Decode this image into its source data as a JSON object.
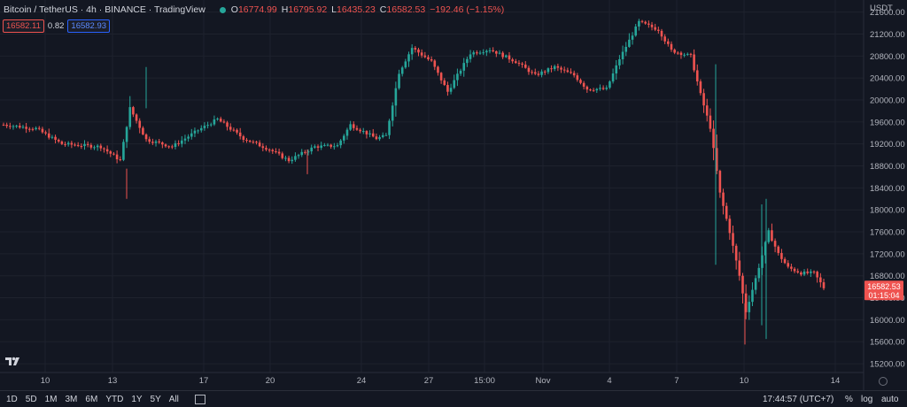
{
  "header": {
    "symbol": "Bitcoin / TetherUS · 4h · BINANCE · TradingView",
    "open_label": "O",
    "open": "16774.99",
    "high_label": "H",
    "high": "16795.92",
    "low_label": "L",
    "low": "16435.23",
    "close_label": "C",
    "close": "16582.53",
    "change": "−192.46 (−1.15%)",
    "bid": "16582.11",
    "spread": "0.82",
    "ask": "16582.93",
    "currency": "USDT"
  },
  "colors": {
    "up": "#26a69a",
    "down": "#ef5350",
    "background": "#131722",
    "grid": "#1e222d",
    "text": "#b2b5be"
  },
  "chart_data": {
    "type": "candlestick",
    "y_ticks": [
      15200,
      15600,
      16000,
      16400,
      16800,
      17200,
      17600,
      18000,
      18400,
      18800,
      19200,
      19600,
      20000,
      20400,
      20800,
      21200,
      21600
    ],
    "ylim": [
      15040,
      21820
    ],
    "x_labels": [
      "10",
      "13",
      "17",
      "20",
      "24",
      "27",
      "15:00",
      "Nov",
      "4",
      "7",
      "10",
      "14"
    ],
    "last_price": "16582.53",
    "countdown": "01:15:04",
    "grid": true,
    "keypoints": [
      {
        "i": 0,
        "price": 19550
      },
      {
        "i": 10,
        "price": 19480
      },
      {
        "i": 18,
        "price": 19200
      },
      {
        "i": 30,
        "price": 19150
      },
      {
        "i": 36,
        "price": 18900
      },
      {
        "i": 39,
        "price": 19850
      },
      {
        "i": 44,
        "price": 19280
      },
      {
        "i": 52,
        "price": 19150
      },
      {
        "i": 60,
        "price": 19450
      },
      {
        "i": 66,
        "price": 19650
      },
      {
        "i": 74,
        "price": 19300
      },
      {
        "i": 82,
        "price": 19100
      },
      {
        "i": 88,
        "price": 18900
      },
      {
        "i": 96,
        "price": 19150
      },
      {
        "i": 103,
        "price": 19170
      },
      {
        "i": 107,
        "price": 19550
      },
      {
        "i": 115,
        "price": 19300
      },
      {
        "i": 118,
        "price": 19350
      },
      {
        "i": 122,
        "price": 20500
      },
      {
        "i": 126,
        "price": 20950
      },
      {
        "i": 132,
        "price": 20700
      },
      {
        "i": 137,
        "price": 20150
      },
      {
        "i": 144,
        "price": 20850
      },
      {
        "i": 150,
        "price": 20920
      },
      {
        "i": 158,
        "price": 20700
      },
      {
        "i": 164,
        "price": 20450
      },
      {
        "i": 170,
        "price": 20600
      },
      {
        "i": 176,
        "price": 20450
      },
      {
        "i": 180,
        "price": 20200
      },
      {
        "i": 186,
        "price": 20200
      },
      {
        "i": 190,
        "price": 20750
      },
      {
        "i": 196,
        "price": 21420
      },
      {
        "i": 202,
        "price": 21280
      },
      {
        "i": 206,
        "price": 20900
      },
      {
        "i": 212,
        "price": 20800
      },
      {
        "i": 215,
        "price": 20100
      },
      {
        "i": 218,
        "price": 19500
      },
      {
        "i": 221,
        "price": 18300
      },
      {
        "i": 224,
        "price": 17600
      },
      {
        "i": 227,
        "price": 16800
      },
      {
        "i": 229,
        "price": 16150
      },
      {
        "i": 232,
        "price": 16750
      },
      {
        "i": 236,
        "price": 17600
      },
      {
        "i": 239,
        "price": 17200
      },
      {
        "i": 242,
        "price": 16950
      },
      {
        "i": 246,
        "price": 16850
      },
      {
        "i": 250,
        "price": 16850
      },
      {
        "i": 253,
        "price": 16582
      }
    ]
  },
  "toolbar": {
    "ranges": [
      "1D",
      "5D",
      "1M",
      "3M",
      "6M",
      "YTD",
      "1Y",
      "5Y",
      "All"
    ],
    "clock": "17:44:57 (UTC+7)",
    "percent": "%",
    "log": "log",
    "auto": "auto"
  }
}
